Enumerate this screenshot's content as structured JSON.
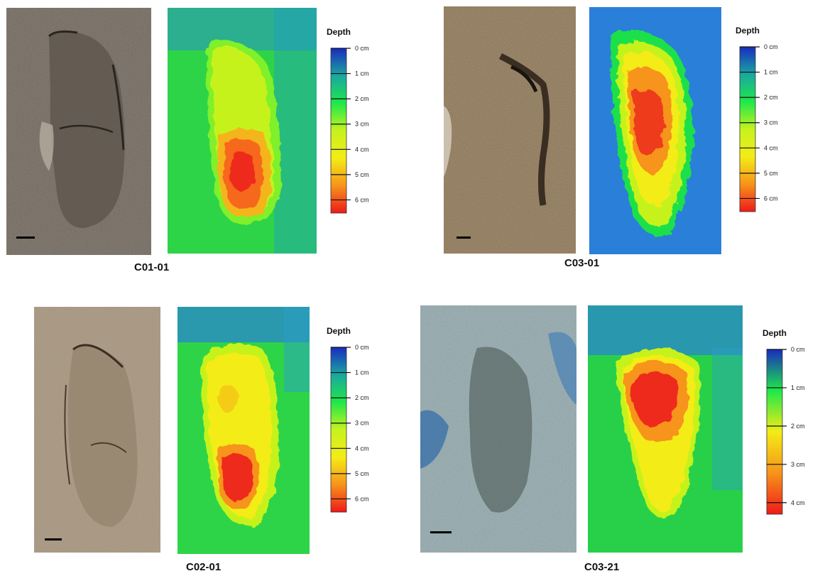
{
  "legend_title": "Depth",
  "panels": [
    {
      "id": "C01-01",
      "label": "C01-01",
      "legend_ticks": [
        "0 cm",
        "1 cm",
        "2 cm",
        "3 cm",
        "4 cm",
        "5 cm",
        "6 cm"
      ],
      "photo_tone": "#6f655a"
    },
    {
      "id": "C03-01",
      "label": "C03-01",
      "legend_ticks": [
        "0 cm",
        "1 cm",
        "2 cm",
        "3 cm",
        "4 cm",
        "5 cm",
        "6 cm"
      ],
      "photo_tone": "#8c7350"
    },
    {
      "id": "C02-01",
      "label": "C02-01",
      "legend_ticks": [
        "0 cm",
        "1 cm",
        "2 cm",
        "3 cm",
        "4 cm",
        "5 cm",
        "6 cm"
      ],
      "photo_tone": "#a6947c"
    },
    {
      "id": "C03-21",
      "label": "C03-21",
      "legend_ticks": [
        "0 cm",
        "1 cm",
        "2 cm",
        "3 cm",
        "4 cm"
      ],
      "photo_tone": "#7e97a0"
    }
  ],
  "colors": {
    "depth_0": "#1a2bbf",
    "depth_1": "#1aa7a0",
    "depth_2": "#1ee84a",
    "depth_3": "#c6f21e",
    "depth_4": "#f4ec16",
    "depth_5": "#f6941a",
    "depth_6": "#ee1a1a"
  }
}
